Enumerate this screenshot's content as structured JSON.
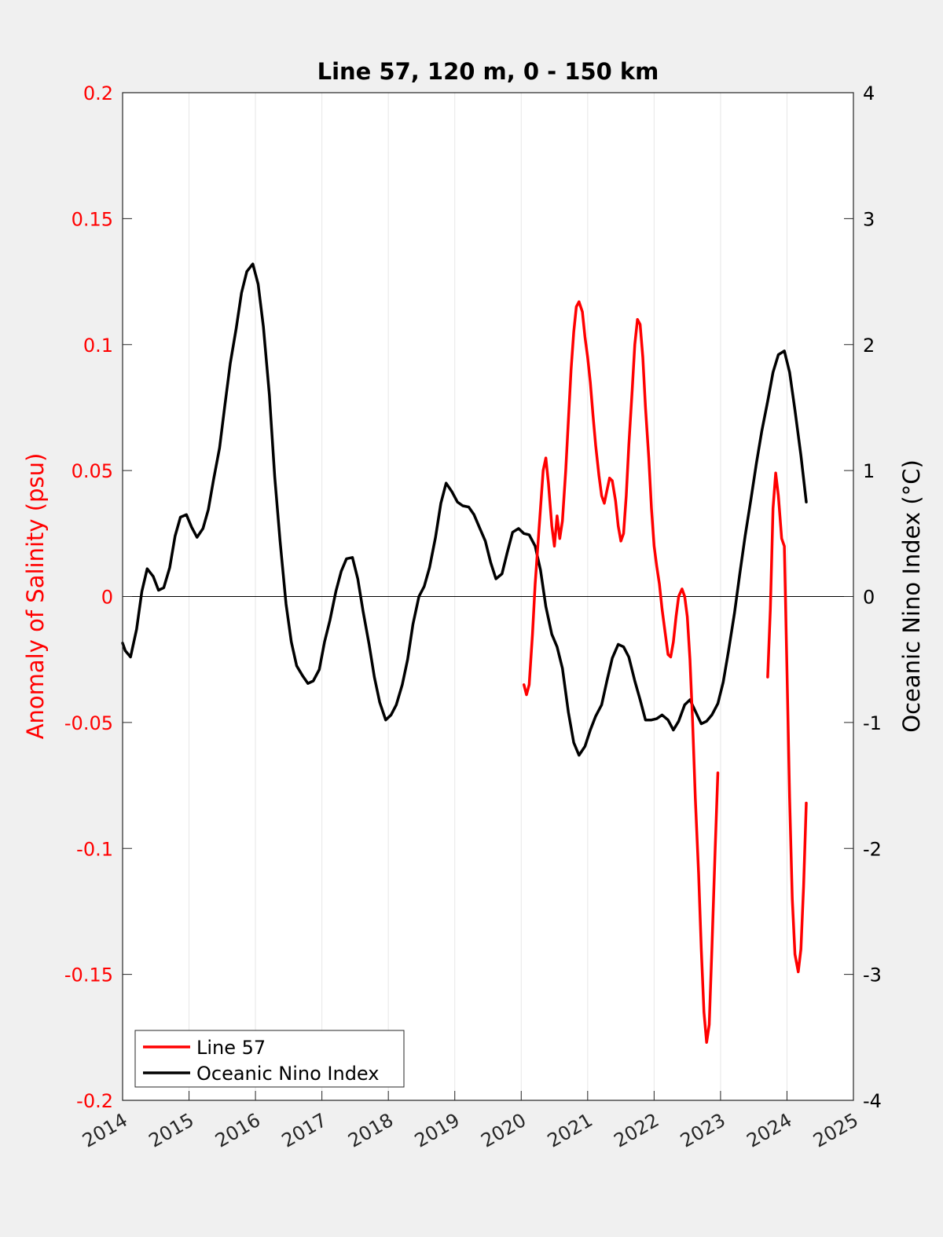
{
  "chart_data": {
    "type": "line",
    "title": "Line 57, 120 m, 0 - 150 km",
    "ylabel_left": "Anomaly of Salinity (psu)",
    "ylabel_right": "Oceanic Nino Index (°C)",
    "xlim": [
      2014,
      2025
    ],
    "ylim_left": [
      -0.2,
      0.2
    ],
    "ylim_right": [
      -4,
      4
    ],
    "x_ticks": [
      2014,
      2015,
      2016,
      2017,
      2018,
      2019,
      2020,
      2021,
      2022,
      2023,
      2024,
      2025
    ],
    "x_tick_labels": [
      "2014",
      "2015",
      "2016",
      "2017",
      "2018",
      "2019",
      "2020",
      "2021",
      "2022",
      "2023",
      "2024",
      "2025"
    ],
    "y_left_ticks": [
      0.2,
      0.15,
      0.1,
      0.05,
      0,
      -0.05,
      -0.1,
      -0.15,
      -0.2
    ],
    "y_left_tick_labels": [
      "0.2",
      "0.15",
      "0.1",
      "0.05",
      "0",
      "-0.05",
      "-0.1",
      "-0.15",
      "-0.2"
    ],
    "y_right_ticks": [
      4,
      3,
      2,
      1,
      0,
      -1,
      -2,
      -3,
      -4
    ],
    "y_right_tick_labels": [
      "4",
      "3",
      "2",
      "1",
      "0",
      "-1",
      "-2",
      "-3",
      "-4"
    ],
    "vertical_grid": true,
    "zero_line": true,
    "legend_position": "bottom-left",
    "colors": {
      "line57": "#ff0000",
      "oni": "#000000",
      "left_axis": "#ff0000",
      "right_axis": "#000000"
    },
    "series": [
      {
        "name": "Line 57",
        "axis": "left",
        "color": "#ff0000",
        "segments": [
          [
            [
              2020.04,
              -0.035
            ],
            [
              2020.08,
              -0.039
            ],
            [
              2020.12,
              -0.035
            ],
            [
              2020.17,
              -0.015
            ],
            [
              2020.21,
              0.005
            ],
            [
              2020.25,
              0.02
            ],
            [
              2020.29,
              0.035
            ],
            [
              2020.33,
              0.05
            ],
            [
              2020.37,
              0.055
            ],
            [
              2020.41,
              0.045
            ],
            [
              2020.46,
              0.028
            ],
            [
              2020.5,
              0.02
            ],
            [
              2020.54,
              0.032
            ],
            [
              2020.58,
              0.023
            ],
            [
              2020.62,
              0.03
            ],
            [
              2020.67,
              0.05
            ],
            [
              2020.71,
              0.07
            ],
            [
              2020.75,
              0.09
            ],
            [
              2020.79,
              0.105
            ],
            [
              2020.83,
              0.115
            ],
            [
              2020.87,
              0.117
            ],
            [
              2020.92,
              0.113
            ],
            [
              2020.96,
              0.103
            ],
            [
              2021.0,
              0.095
            ],
            [
              2021.04,
              0.085
            ],
            [
              2021.08,
              0.072
            ],
            [
              2021.12,
              0.06
            ],
            [
              2021.17,
              0.048
            ],
            [
              2021.21,
              0.04
            ],
            [
              2021.25,
              0.037
            ],
            [
              2021.29,
              0.042
            ],
            [
              2021.33,
              0.047
            ],
            [
              2021.37,
              0.046
            ],
            [
              2021.42,
              0.038
            ],
            [
              2021.46,
              0.028
            ],
            [
              2021.5,
              0.022
            ],
            [
              2021.54,
              0.025
            ],
            [
              2021.58,
              0.04
            ],
            [
              2021.62,
              0.06
            ],
            [
              2021.67,
              0.082
            ],
            [
              2021.71,
              0.1
            ],
            [
              2021.75,
              0.11
            ],
            [
              2021.79,
              0.108
            ],
            [
              2021.83,
              0.095
            ],
            [
              2021.87,
              0.075
            ],
            [
              2021.92,
              0.055
            ],
            [
              2021.96,
              0.035
            ],
            [
              2022.0,
              0.02
            ],
            [
              2022.04,
              0.012
            ],
            [
              2022.08,
              0.005
            ],
            [
              2022.12,
              -0.005
            ],
            [
              2022.17,
              -0.015
            ],
            [
              2022.21,
              -0.023
            ],
            [
              2022.25,
              -0.024
            ],
            [
              2022.29,
              -0.018
            ],
            [
              2022.33,
              -0.008
            ],
            [
              2022.37,
              0.0
            ],
            [
              2022.42,
              0.003
            ],
            [
              2022.46,
              0.0
            ],
            [
              2022.5,
              -0.008
            ],
            [
              2022.54,
              -0.025
            ],
            [
              2022.58,
              -0.05
            ],
            [
              2022.62,
              -0.08
            ],
            [
              2022.67,
              -0.11
            ],
            [
              2022.71,
              -0.14
            ],
            [
              2022.75,
              -0.165
            ],
            [
              2022.79,
              -0.177
            ],
            [
              2022.83,
              -0.17
            ],
            [
              2022.87,
              -0.14
            ],
            [
              2022.92,
              -0.1
            ],
            [
              2022.96,
              -0.07
            ]
          ],
          [
            [
              2023.71,
              -0.032
            ],
            [
              2023.75,
              -0.005
            ],
            [
              2023.79,
              0.035
            ],
            [
              2023.83,
              0.049
            ],
            [
              2023.87,
              0.04
            ],
            [
              2023.92,
              0.023
            ],
            [
              2023.96,
              0.02
            ],
            [
              2024.0,
              -0.03
            ],
            [
              2024.04,
              -0.08
            ],
            [
              2024.08,
              -0.12
            ],
            [
              2024.12,
              -0.142
            ],
            [
              2024.17,
              -0.149
            ],
            [
              2024.21,
              -0.14
            ],
            [
              2024.25,
              -0.115
            ],
            [
              2024.29,
              -0.082
            ]
          ]
        ]
      },
      {
        "name": "Oceanic Nino Index",
        "axis": "right",
        "color": "#000000",
        "points": [
          [
            2014.0,
            -0.37
          ],
          [
            2014.04,
            -0.43
          ],
          [
            2014.12,
            -0.48
          ],
          [
            2014.21,
            -0.26
          ],
          [
            2014.29,
            0.04
          ],
          [
            2014.37,
            0.22
          ],
          [
            2014.46,
            0.16
          ],
          [
            2014.54,
            0.05
          ],
          [
            2014.62,
            0.07
          ],
          [
            2014.71,
            0.23
          ],
          [
            2014.79,
            0.48
          ],
          [
            2014.87,
            0.63
          ],
          [
            2014.96,
            0.65
          ],
          [
            2015.04,
            0.55
          ],
          [
            2015.12,
            0.47
          ],
          [
            2015.21,
            0.54
          ],
          [
            2015.29,
            0.69
          ],
          [
            2015.37,
            0.93
          ],
          [
            2015.46,
            1.18
          ],
          [
            2015.54,
            1.52
          ],
          [
            2015.62,
            1.85
          ],
          [
            2015.71,
            2.13
          ],
          [
            2015.79,
            2.41
          ],
          [
            2015.87,
            2.58
          ],
          [
            2015.96,
            2.64
          ],
          [
            2016.04,
            2.48
          ],
          [
            2016.12,
            2.14
          ],
          [
            2016.21,
            1.6
          ],
          [
            2016.29,
            0.95
          ],
          [
            2016.37,
            0.44
          ],
          [
            2016.46,
            -0.06
          ],
          [
            2016.54,
            -0.36
          ],
          [
            2016.62,
            -0.55
          ],
          [
            2016.71,
            -0.63
          ],
          [
            2016.79,
            -0.69
          ],
          [
            2016.87,
            -0.67
          ],
          [
            2016.96,
            -0.58
          ],
          [
            2017.04,
            -0.36
          ],
          [
            2017.12,
            -0.19
          ],
          [
            2017.21,
            0.04
          ],
          [
            2017.29,
            0.2
          ],
          [
            2017.37,
            0.3
          ],
          [
            2017.46,
            0.31
          ],
          [
            2017.54,
            0.14
          ],
          [
            2017.62,
            -0.12
          ],
          [
            2017.71,
            -0.38
          ],
          [
            2017.79,
            -0.64
          ],
          [
            2017.87,
            -0.84
          ],
          [
            2017.96,
            -0.98
          ],
          [
            2018.04,
            -0.94
          ],
          [
            2018.12,
            -0.86
          ],
          [
            2018.21,
            -0.7
          ],
          [
            2018.29,
            -0.5
          ],
          [
            2018.37,
            -0.22
          ],
          [
            2018.46,
            0.0
          ],
          [
            2018.54,
            0.08
          ],
          [
            2018.62,
            0.23
          ],
          [
            2018.71,
            0.47
          ],
          [
            2018.79,
            0.74
          ],
          [
            2018.87,
            0.9
          ],
          [
            2018.96,
            0.83
          ],
          [
            2019.04,
            0.75
          ],
          [
            2019.12,
            0.72
          ],
          [
            2019.21,
            0.71
          ],
          [
            2019.29,
            0.65
          ],
          [
            2019.37,
            0.55
          ],
          [
            2019.46,
            0.44
          ],
          [
            2019.54,
            0.27
          ],
          [
            2019.62,
            0.14
          ],
          [
            2019.71,
            0.18
          ],
          [
            2019.79,
            0.35
          ],
          [
            2019.87,
            0.51
          ],
          [
            2019.96,
            0.54
          ],
          [
            2020.04,
            0.5
          ],
          [
            2020.12,
            0.49
          ],
          [
            2020.21,
            0.4
          ],
          [
            2020.29,
            0.21
          ],
          [
            2020.37,
            -0.08
          ],
          [
            2020.46,
            -0.3
          ],
          [
            2020.54,
            -0.4
          ],
          [
            2020.62,
            -0.57
          ],
          [
            2020.71,
            -0.92
          ],
          [
            2020.79,
            -1.16
          ],
          [
            2020.87,
            -1.26
          ],
          [
            2020.96,
            -1.19
          ],
          [
            2021.04,
            -1.06
          ],
          [
            2021.12,
            -0.95
          ],
          [
            2021.21,
            -0.86
          ],
          [
            2021.29,
            -0.67
          ],
          [
            2021.37,
            -0.49
          ],
          [
            2021.46,
            -0.38
          ],
          [
            2021.54,
            -0.4
          ],
          [
            2021.62,
            -0.48
          ],
          [
            2021.71,
            -0.67
          ],
          [
            2021.79,
            -0.82
          ],
          [
            2021.87,
            -0.98
          ],
          [
            2021.96,
            -0.98
          ],
          [
            2022.04,
            -0.97
          ],
          [
            2022.12,
            -0.94
          ],
          [
            2022.21,
            -0.98
          ],
          [
            2022.29,
            -1.06
          ],
          [
            2022.37,
            -0.99
          ],
          [
            2022.46,
            -0.86
          ],
          [
            2022.54,
            -0.82
          ],
          [
            2022.62,
            -0.91
          ],
          [
            2022.71,
            -1.01
          ],
          [
            2022.79,
            -0.99
          ],
          [
            2022.87,
            -0.94
          ],
          [
            2022.96,
            -0.85
          ],
          [
            2023.04,
            -0.68
          ],
          [
            2023.12,
            -0.43
          ],
          [
            2023.21,
            -0.13
          ],
          [
            2023.29,
            0.18
          ],
          [
            2023.37,
            0.48
          ],
          [
            2023.46,
            0.78
          ],
          [
            2023.54,
            1.06
          ],
          [
            2023.62,
            1.31
          ],
          [
            2023.71,
            1.55
          ],
          [
            2023.79,
            1.78
          ],
          [
            2023.87,
            1.92
          ],
          [
            2023.96,
            1.95
          ],
          [
            2024.04,
            1.78
          ],
          [
            2024.12,
            1.48
          ],
          [
            2024.21,
            1.12
          ],
          [
            2024.29,
            0.75
          ]
        ]
      }
    ]
  }
}
